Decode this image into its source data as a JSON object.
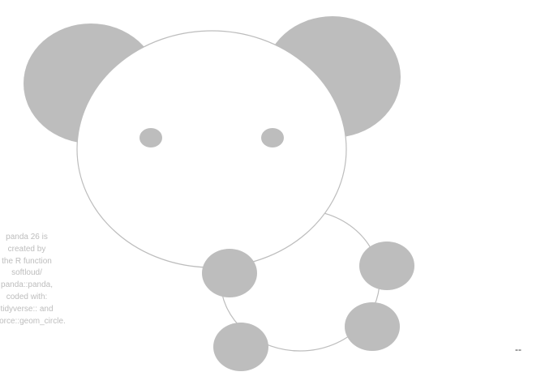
{
  "caption": {
    "lines": [
      "panda 26 is",
      "created by",
      "the R function",
      "softloud/",
      "panda::panda,",
      "coded with:",
      "tidyverse:: and",
      "ggforce::geom_circle."
    ]
  },
  "corner_mark": "--",
  "colors": {
    "fill": "#bdbdbd",
    "outline": "#bdbdbd",
    "face": "#ffffff",
    "caption_text": "#bdbdbd"
  }
}
